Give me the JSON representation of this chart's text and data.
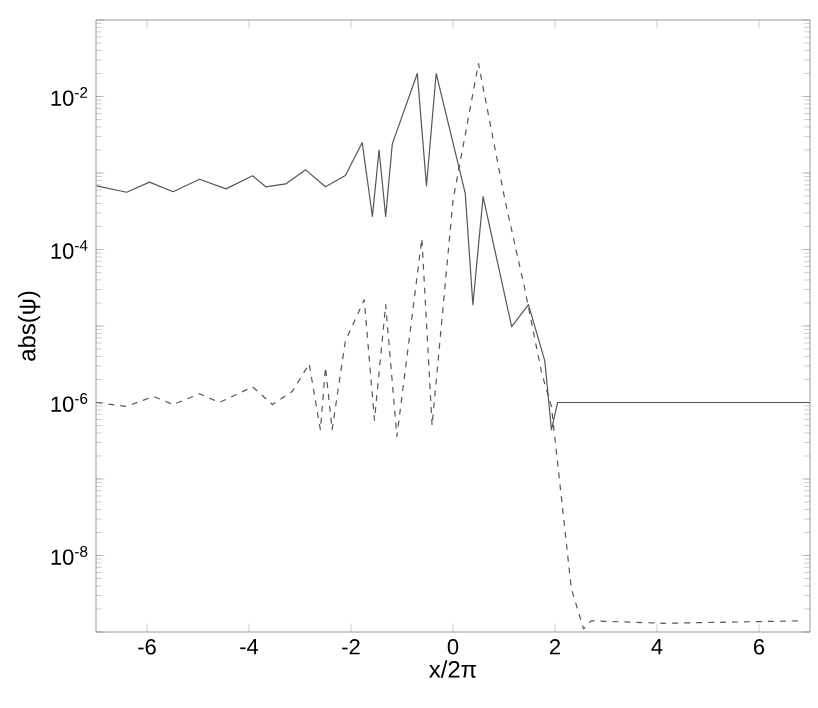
{
  "chart_data": {
    "type": "line",
    "xlabel": "x/2π",
    "ylabel": "abs(ψ)",
    "log": "y",
    "grid": false,
    "marker": "none",
    "xlim": [
      -7,
      7
    ],
    "ylim": [
      1e-09,
      0.1
    ],
    "xticks": [
      -6,
      -4,
      -2,
      0,
      2,
      4,
      6
    ],
    "yticks": [
      {
        "value": 1e-09,
        "label": null
      },
      {
        "value": 1e-08,
        "label": "10$^{-8}$"
      },
      {
        "value": 1e-07,
        "label": null
      },
      {
        "value": 1e-06,
        "label": "10$^{-6}$"
      },
      {
        "value": 1e-05,
        "label": null
      },
      {
        "value": 0.0001,
        "label": "10$^{-4}$"
      },
      {
        "value": 0.001,
        "label": null
      },
      {
        "value": 0.01,
        "label": "10$^{-2}$"
      },
      {
        "value": 0.1,
        "label": null
      }
    ],
    "series": [
      {
        "color": "#555555",
        "line_style": "solid",
        "x": [
          -6.99,
          -6.4,
          -5.95,
          -5.49,
          -4.97,
          -4.45,
          -3.93,
          -3.67,
          -3.28,
          -2.89,
          -2.5,
          -2.11,
          -1.78,
          -1.58,
          -1.45,
          -1.32,
          -1.19,
          -0.7,
          -0.52,
          -0.33,
          0.24,
          0.39,
          0.59,
          1.15,
          1.48,
          1.8,
          1.93,
          2.05,
          7
        ],
        "values": [
          0.00068,
          0.00056,
          0.00076,
          0.00057,
          0.00083,
          0.00062,
          0.00092,
          0.00066,
          0.00072,
          0.0011,
          0.00066,
          0.00093,
          0.0025,
          0.00027,
          0.002,
          0.00027,
          0.0024,
          0.02,
          0.00068,
          0.02,
          0.00054,
          1.9e-05,
          0.00049,
          9.8e-06,
          1.9e-05,
          3.5e-06,
          4.4e-07,
          1e-06,
          1e-06
        ]
      },
      {
        "color": "#555555",
        "line_style": "dashed",
        "x": [
          -6.99,
          -6.4,
          -5.87,
          -5.49,
          -4.97,
          -4.58,
          -3.93,
          -3.54,
          -3.15,
          -2.82,
          -2.6,
          -2.5,
          -2.37,
          -2.11,
          -1.74,
          -1.54,
          -1.32,
          -1.1,
          -0.61,
          -0.41,
          0.0,
          0.5,
          1.02,
          1.41,
          1.74,
          1.93,
          2.32,
          2.56,
          2.71,
          4.13,
          6.86
        ],
        "values": [
          1e-06,
          8.9e-07,
          1.2e-06,
          9.4e-07,
          1.3e-06,
          1e-06,
          1.6e-06,
          9.4e-07,
          1.4e-06,
          3.2e-06,
          4.4e-07,
          2.9e-06,
          4.4e-07,
          6.4e-06,
          2.2e-05,
          5.9e-07,
          1.9e-05,
          3.6e-07,
          0.00014,
          5e-07,
          0.00044,
          0.027,
          0.00044,
          3e-05,
          2.4e-06,
          8.9e-07,
          3.7e-09,
          1.1e-09,
          1.4e-09,
          1.3e-09,
          1.4e-09
        ]
      }
    ]
  }
}
